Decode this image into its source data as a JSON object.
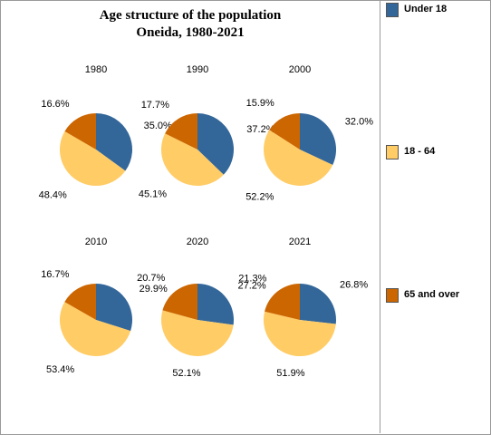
{
  "title": {
    "line1": "Age structure of the population",
    "line2": "Oneida, 1980-2021"
  },
  "colors": {
    "under18": "#336699",
    "age18_64": "#FFCC66",
    "over65": "#CC6600"
  },
  "legend": [
    {
      "key": "under18",
      "label": "Under 18"
    },
    {
      "key": "age18_64",
      "label": "18 - 64"
    },
    {
      "key": "over65",
      "label": "65 and over"
    }
  ],
  "chart_data": {
    "type": "pie",
    "series": [
      {
        "name": "Under 18",
        "key": "under18"
      },
      {
        "name": "18 - 64",
        "key": "age18_64"
      },
      {
        "name": "65 and over",
        "key": "over65"
      }
    ],
    "pies": [
      {
        "year": "1980",
        "values": [
          35.0,
          48.4,
          16.6
        ],
        "labels": [
          "35.0%",
          "48.4%",
          "16.6%"
        ]
      },
      {
        "year": "1990",
        "values": [
          37.2,
          45.1,
          17.7
        ],
        "labels": [
          "37.2%",
          "45.1%",
          "17.7%"
        ]
      },
      {
        "year": "2000",
        "values": [
          32.0,
          52.2,
          15.9
        ],
        "labels": [
          "32.0%",
          "52.2%",
          "15.9%"
        ]
      },
      {
        "year": "2010",
        "values": [
          29.9,
          53.4,
          16.7
        ],
        "labels": [
          "29.9%",
          "53.4%",
          "16.7%"
        ]
      },
      {
        "year": "2020",
        "values": [
          27.2,
          52.1,
          20.7
        ],
        "labels": [
          "27.2%",
          "52.1%",
          "20.7%"
        ]
      },
      {
        "year": "2021",
        "values": [
          26.8,
          51.9,
          21.3
        ],
        "labels": [
          "26.8%",
          "51.9%",
          "21.3%"
        ]
      }
    ]
  }
}
